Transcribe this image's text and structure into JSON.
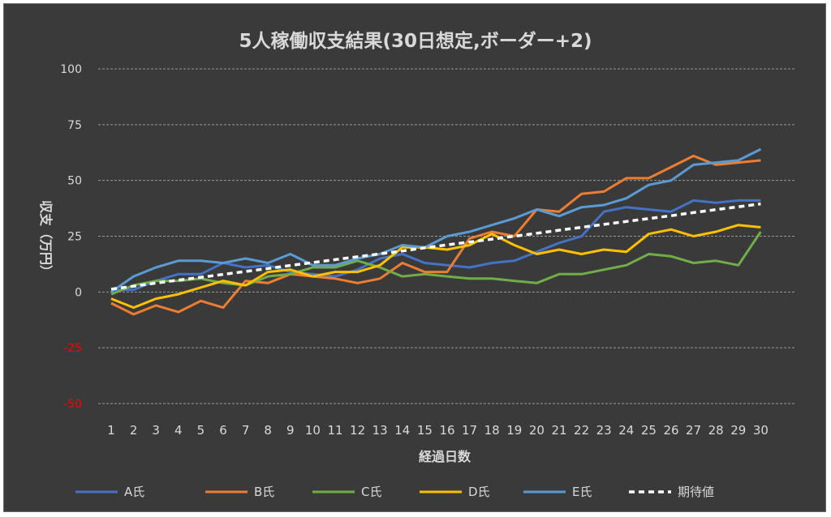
{
  "chart_data": {
    "type": "line",
    "title": "5人稼働収支結果(30日想定,ボーダー+2)",
    "xlabel": "経過日数",
    "ylabel": "収支（万円）",
    "ylim": [
      -50,
      100
    ],
    "yticks": [
      100,
      75,
      50,
      25,
      0,
      -25,
      -50
    ],
    "grid": true,
    "legend_position": "bottom",
    "colors": {
      "background": "#3a3a3a",
      "text": "#d9d9d9",
      "grid": "#9a9a9a",
      "negative_tick": "#ff0000"
    },
    "categories": [
      "1",
      "2",
      "3",
      "4",
      "5",
      "6",
      "7",
      "8",
      "9",
      "10",
      "11",
      "12",
      "13",
      "14",
      "15",
      "16",
      "17",
      "18",
      "19",
      "20",
      "21",
      "22",
      "23",
      "24",
      "25",
      "26",
      "27",
      "28",
      "29",
      "30"
    ],
    "series": [
      {
        "name": "A氏",
        "color": "#4472c4",
        "dashed": false,
        "values": [
          1,
          1,
          5,
          8,
          8,
          13,
          11,
          12,
          9,
          8,
          7,
          10,
          15,
          17,
          13,
          12,
          11,
          13,
          14,
          18,
          22,
          25,
          36,
          38,
          37,
          36,
          41,
          40,
          41,
          41
        ]
      },
      {
        "name": "B氏",
        "color": "#ed7d31",
        "dashed": false,
        "values": [
          -5,
          -10,
          -6,
          -9,
          -4,
          -7,
          5,
          4,
          8,
          7,
          6,
          4,
          6,
          13,
          9,
          9,
          24,
          27,
          25,
          37,
          36,
          44,
          45,
          51,
          51,
          56,
          61,
          57,
          58,
          59
        ]
      },
      {
        "name": "C氏",
        "color": "#70ad47",
        "dashed": false,
        "values": [
          -1,
          3,
          5,
          5,
          6,
          4,
          3,
          7,
          8,
          11,
          11,
          14,
          11,
          7,
          8,
          7,
          6,
          6,
          5,
          4,
          8,
          8,
          10,
          12,
          17,
          16,
          13,
          14,
          12,
          27
        ]
      },
      {
        "name": "D氏",
        "color": "#ffc000",
        "dashed": false,
        "values": [
          -3,
          -7,
          -3,
          -1,
          2,
          5,
          3,
          9,
          10,
          7,
          9,
          9,
          12,
          20,
          20,
          19,
          21,
          26,
          21,
          17,
          19,
          17,
          19,
          18,
          26,
          28,
          25,
          27,
          30,
          29
        ]
      },
      {
        "name": "E氏",
        "color": "#5b9bd5",
        "dashed": false,
        "values": [
          0,
          7,
          11,
          14,
          14,
          13,
          15,
          13,
          17,
          12,
          12,
          15,
          17,
          21,
          20,
          25,
          27,
          30,
          33,
          37,
          34,
          38,
          39,
          42,
          48,
          50,
          57,
          58,
          59,
          64
        ]
      },
      {
        "name": "期待値",
        "color": "#ffffff",
        "dashed": true,
        "values": [
          1.3,
          2.6,
          4.0,
          5.3,
          6.6,
          7.9,
          9.2,
          10.5,
          11.9,
          13.2,
          14.5,
          15.8,
          17.1,
          18.4,
          19.8,
          21.1,
          22.4,
          23.7,
          25.0,
          26.3,
          27.7,
          29.0,
          30.3,
          31.6,
          32.9,
          34.2,
          35.6,
          36.9,
          38.2,
          39.5
        ]
      }
    ]
  }
}
